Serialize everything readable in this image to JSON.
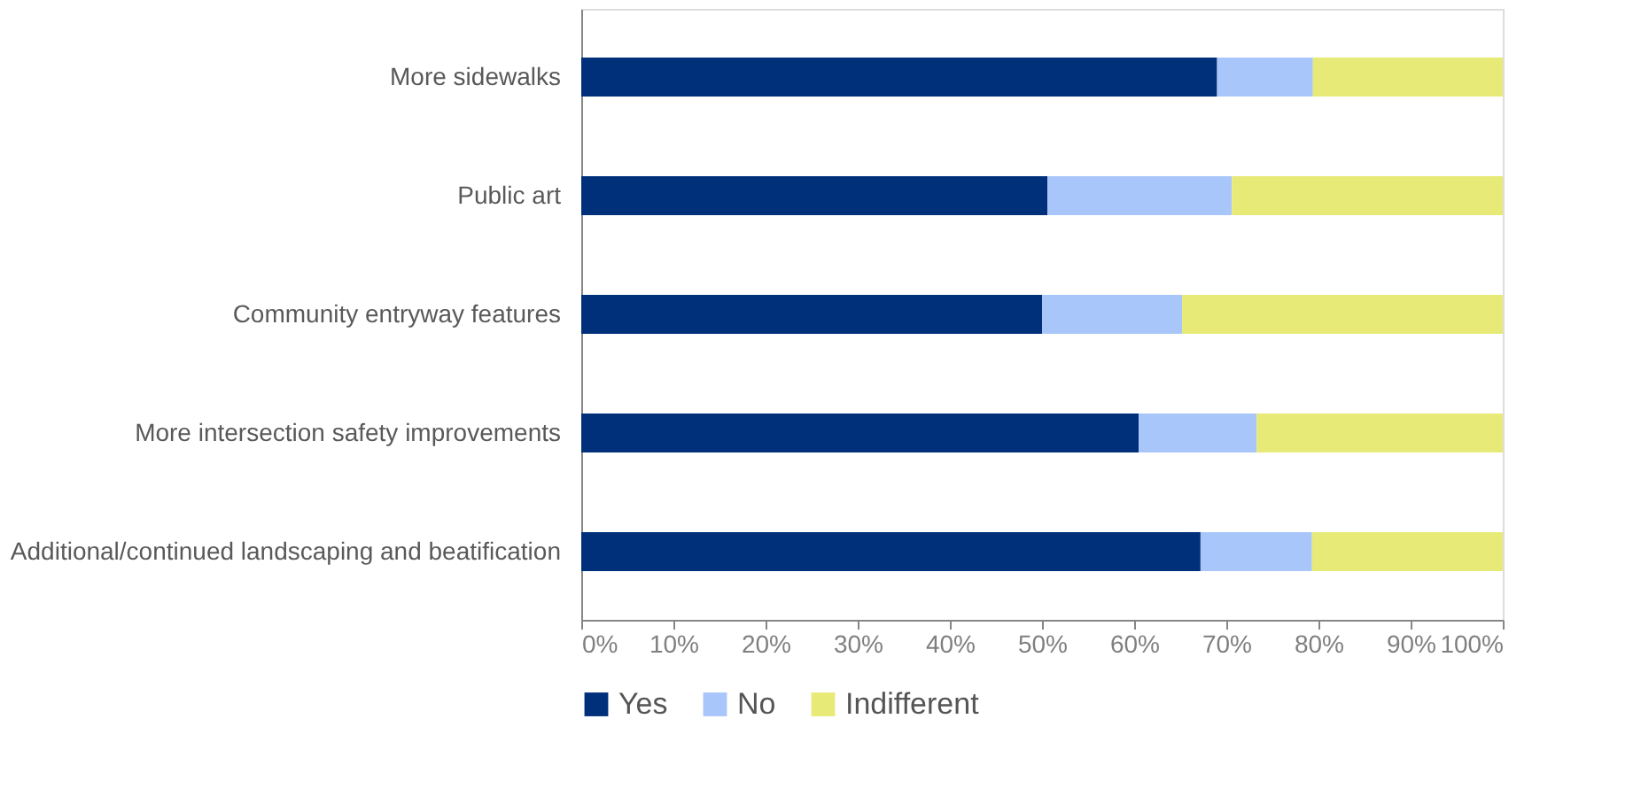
{
  "chart_data": {
    "type": "bar",
    "orientation": "horizontal",
    "stacked": true,
    "categories": [
      "More sidewalks",
      "Public art",
      "Community entryway features",
      "More intersection safety improvements",
      "Additional/continued landscaping and beatification"
    ],
    "series": [
      {
        "name": "Yes",
        "color": "#00307a",
        "values": [
          69.0,
          50.6,
          50.0,
          60.5,
          67.2
        ]
      },
      {
        "name": "No",
        "color": "#a9c6fb",
        "values": [
          10.4,
          20.0,
          15.2,
          12.8,
          12.1
        ]
      },
      {
        "name": "Indifferent",
        "color": "#e8ea77",
        "values": [
          20.6,
          29.4,
          34.8,
          26.7,
          20.7
        ]
      }
    ],
    "xlim": [
      0,
      100
    ],
    "xticks": [
      {
        "value": 0,
        "label": "0%"
      },
      {
        "value": 10,
        "label": "10%"
      },
      {
        "value": 20,
        "label": "20%"
      },
      {
        "value": 30,
        "label": "30%"
      },
      {
        "value": 40,
        "label": "40%"
      },
      {
        "value": 50,
        "label": "50%"
      },
      {
        "value": 60,
        "label": "60%"
      },
      {
        "value": 70,
        "label": "70%"
      },
      {
        "value": 80,
        "label": "80%"
      },
      {
        "value": 90,
        "label": "90%"
      },
      {
        "value": 100,
        "label": "100%"
      }
    ],
    "grid": false,
    "legend": "bottom"
  }
}
